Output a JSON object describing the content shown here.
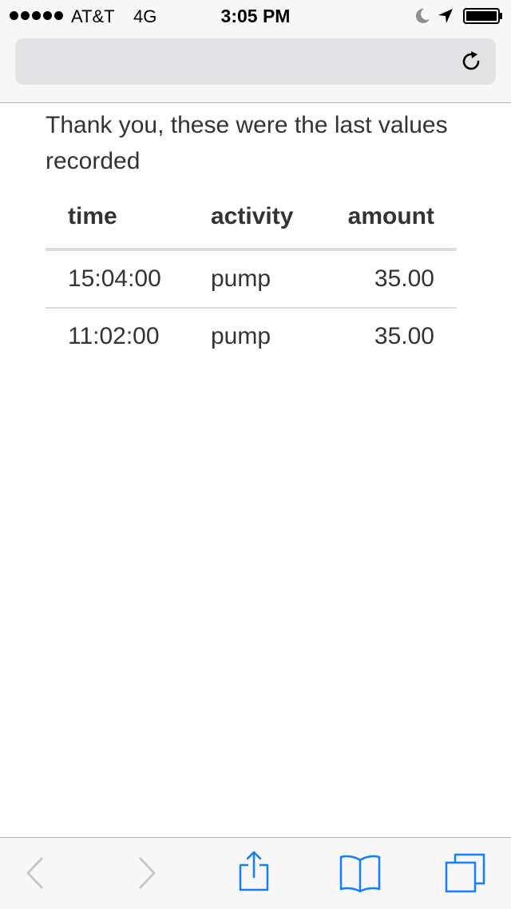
{
  "status_bar": {
    "carrier": "AT&T",
    "network": "4G",
    "time": "3:05 PM",
    "signal_bars": 5,
    "icons": [
      "moon-icon",
      "location-icon",
      "battery-icon"
    ]
  },
  "browser": {
    "address_value": "",
    "reload_icon": "reload-icon"
  },
  "page": {
    "message": "Thank you, these were the last values recorded",
    "table": {
      "headers": {
        "time": "time",
        "activity": "activity",
        "amount": "amount"
      },
      "rows": [
        {
          "time": "15:04:00",
          "activity": "pump",
          "amount": "35.00"
        },
        {
          "time": "11:02:00",
          "activity": "pump",
          "amount": "35.00"
        }
      ]
    }
  },
  "toolbar": {
    "icons": [
      "back-icon",
      "forward-icon",
      "share-icon",
      "bookmarks-icon",
      "tabs-icon"
    ],
    "accent_color": "#157efb",
    "disabled_color": "#c7c7cc"
  }
}
